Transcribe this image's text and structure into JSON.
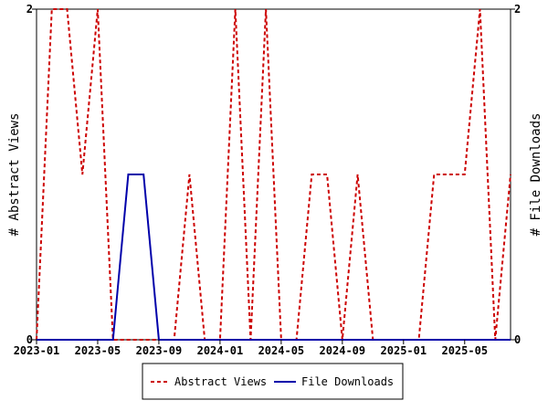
{
  "chart_data": {
    "type": "line",
    "x_ticks": [
      "2023-01",
      "2023-05",
      "2023-09",
      "2024-01",
      "2024-05",
      "2024-09",
      "2025-01",
      "2025-05"
    ],
    "x": [
      "2023-01",
      "2023-02",
      "2023-03",
      "2023-04",
      "2023-05",
      "2023-06",
      "2023-07",
      "2023-08",
      "2023-09",
      "2023-10",
      "2023-11",
      "2023-12",
      "2024-01",
      "2024-02",
      "2024-03",
      "2024-04",
      "2024-05",
      "2024-06",
      "2024-07",
      "2024-08",
      "2024-09",
      "2024-10",
      "2024-11",
      "2024-12",
      "2025-01",
      "2025-02",
      "2025-03",
      "2025-04",
      "2025-05",
      "2025-06",
      "2025-07",
      "2025-08"
    ],
    "series": [
      {
        "name": "Abstract Views",
        "color": "#cc0000",
        "style": "dashed",
        "axis": "left",
        "values": [
          0,
          2,
          2,
          1,
          2,
          0,
          0,
          0,
          0,
          0,
          1,
          0,
          0,
          2,
          0,
          2,
          0,
          0,
          1,
          1,
          0,
          1,
          0,
          0,
          0,
          0,
          1,
          1,
          1,
          2,
          0,
          1
        ]
      },
      {
        "name": "File Downloads",
        "color": "#0000aa",
        "style": "solid",
        "axis": "right",
        "values": [
          0,
          0,
          0,
          0,
          0,
          0,
          1,
          1,
          0,
          0,
          0,
          0,
          0,
          0,
          0,
          0,
          0,
          0,
          0,
          0,
          0,
          0,
          0,
          0,
          0,
          0,
          0,
          0,
          0,
          0,
          0,
          0
        ]
      }
    ],
    "ylabel_left": "# Abstract Views",
    "ylabel_right": "# File Downloads",
    "ylim_left": [
      0,
      2
    ],
    "ylim_right": [
      0,
      2
    ],
    "y_ticks_left": [
      "0",
      "2"
    ],
    "y_ticks_right": [
      "0",
      "2"
    ],
    "grid": false,
    "legend_position": "bottom-center"
  }
}
